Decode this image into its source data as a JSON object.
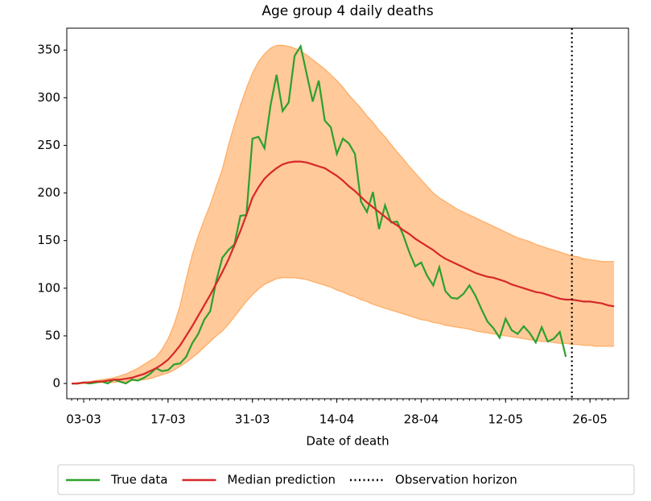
{
  "chart_data": {
    "type": "line",
    "title": "Age group 4 daily deaths",
    "xlabel": "Date of death",
    "x": [
      "01-03",
      "02-03",
      "03-03",
      "04-03",
      "05-03",
      "06-03",
      "07-03",
      "08-03",
      "09-03",
      "10-03",
      "11-03",
      "12-03",
      "13-03",
      "14-03",
      "15-03",
      "16-03",
      "17-03",
      "18-03",
      "19-03",
      "20-03",
      "21-03",
      "22-03",
      "23-03",
      "24-03",
      "25-03",
      "26-03",
      "27-03",
      "28-03",
      "29-03",
      "30-03",
      "31-03",
      "01-04",
      "02-04",
      "03-04",
      "04-04",
      "05-04",
      "06-04",
      "07-04",
      "08-04",
      "09-04",
      "10-04",
      "11-04",
      "12-04",
      "13-04",
      "14-04",
      "15-04",
      "16-04",
      "17-04",
      "18-04",
      "19-04",
      "20-04",
      "21-04",
      "22-04",
      "23-04",
      "24-04",
      "25-04",
      "26-04",
      "27-04",
      "28-04",
      "29-04",
      "30-04",
      "01-05",
      "02-05",
      "03-05",
      "04-05",
      "05-05",
      "06-05",
      "07-05",
      "08-05",
      "09-05",
      "10-05",
      "11-05",
      "12-05",
      "13-05",
      "14-05",
      "15-05",
      "16-05",
      "17-05",
      "18-05",
      "19-05",
      "20-05",
      "21-05",
      "22-05",
      "23-05",
      "24-05",
      "25-05",
      "26-05",
      "27-05",
      "28-05",
      "29-05",
      "30-05"
    ],
    "series": [
      {
        "name": "True data",
        "color": "#2ca02c",
        "values": [
          0,
          0,
          1,
          0,
          1,
          2,
          0,
          4,
          2,
          0,
          4,
          3,
          6,
          10,
          16,
          13,
          14,
          20,
          21,
          28,
          42,
          52,
          67,
          76,
          108,
          132,
          140,
          146,
          176,
          177,
          257,
          259,
          247,
          292,
          324,
          286,
          295,
          344,
          354,
          325,
          296,
          318,
          276,
          269,
          241,
          257,
          252,
          241,
          191,
          180,
          201,
          162,
          187,
          169,
          170,
          156,
          138,
          123,
          127,
          113,
          103,
          122,
          97,
          90,
          89,
          94,
          103,
          92,
          78,
          65,
          58,
          48,
          68,
          56,
          52,
          60,
          53,
          43,
          59,
          44,
          47,
          54,
          28,
          null,
          null,
          null,
          null,
          null,
          null,
          null,
          null
        ]
      },
      {
        "name": "Median prediction",
        "color": "#d62728",
        "values": [
          0,
          0,
          1,
          1,
          2,
          2,
          3,
          4,
          4,
          5,
          6,
          8,
          10,
          13,
          16,
          20,
          25,
          32,
          40,
          50,
          60,
          71,
          82,
          93,
          105,
          117,
          130,
          145,
          160,
          177,
          195,
          206,
          215,
          221,
          226,
          230,
          232,
          233,
          233,
          232,
          230,
          228,
          226,
          222,
          218,
          213,
          207,
          202,
          196,
          190,
          185,
          180,
          175,
          170,
          166,
          161,
          157,
          152,
          148,
          144,
          140,
          135,
          131,
          128,
          125,
          122,
          119,
          116,
          114,
          112,
          111,
          109,
          107,
          104,
          102,
          100,
          98,
          96,
          95,
          93,
          91,
          89,
          88,
          88,
          87,
          86,
          86,
          85,
          84,
          82,
          81
        ]
      }
    ],
    "band": {
      "color": "#ff7f0e",
      "upper": [
        0,
        1,
        1,
        2,
        3,
        4,
        5,
        6,
        8,
        10,
        13,
        16,
        20,
        24,
        28,
        36,
        47,
        62,
        82,
        110,
        135,
        155,
        172,
        188,
        207,
        225,
        250,
        272,
        292,
        310,
        326,
        338,
        346,
        352,
        355,
        355,
        354,
        352,
        349,
        345,
        340,
        335,
        330,
        324,
        318,
        311,
        303,
        296,
        289,
        281,
        274,
        266,
        259,
        251,
        243,
        236,
        228,
        221,
        214,
        207,
        200,
        195,
        191,
        187,
        183,
        180,
        177,
        174,
        171,
        168,
        165,
        162,
        159,
        156,
        153,
        151,
        149,
        146,
        144,
        142,
        140,
        138,
        136,
        134,
        133,
        131,
        130,
        129,
        128,
        128,
        128
      ],
      "lower": [
        0,
        0,
        0,
        0,
        1,
        1,
        1,
        1,
        2,
        2,
        3,
        3,
        4,
        5,
        7,
        9,
        11,
        14,
        18,
        22,
        27,
        32,
        38,
        44,
        50,
        55,
        62,
        70,
        78,
        86,
        93,
        99,
        104,
        107,
        110,
        111,
        111,
        111,
        110,
        109,
        107,
        105,
        103,
        101,
        98,
        96,
        93,
        91,
        88,
        86,
        83,
        81,
        79,
        77,
        75,
        73,
        71,
        69,
        67,
        66,
        64,
        63,
        61,
        60,
        59,
        58,
        57,
        55,
        54,
        53,
        52,
        51,
        50,
        49,
        48,
        47,
        46,
        45,
        44,
        44,
        43,
        42,
        42,
        41,
        41,
        40,
        40,
        39,
        39,
        39,
        39
      ]
    },
    "horizon": {
      "name": "Observation horizon",
      "x": "23-05",
      "color": "#000000"
    },
    "xticks": [
      "03-03",
      "17-03",
      "31-03",
      "14-04",
      "28-04",
      "12-05",
      "26-05"
    ],
    "ylim": [
      -16,
      373
    ],
    "yticks": [
      0,
      50,
      100,
      150,
      200,
      250,
      300,
      350
    ],
    "legend": "bottom"
  }
}
